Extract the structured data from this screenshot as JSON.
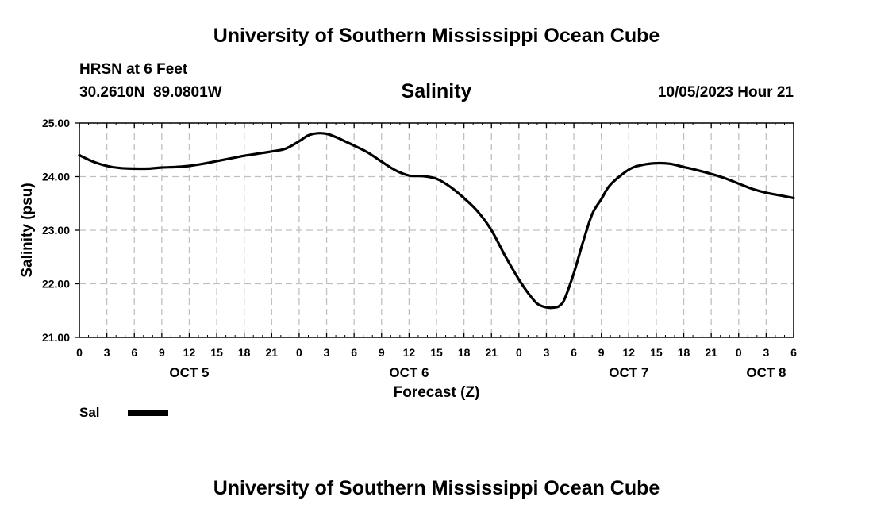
{
  "header": {
    "title": "University of Southern Mississippi Ocean Cube",
    "station": "HRSN at 6 Feet",
    "coords": "30.2610N  89.0801W",
    "chart_title": "Salinity",
    "date": "10/05/2023 Hour 21"
  },
  "footer": {
    "title": "University of Southern Mississippi Ocean Cube"
  },
  "legend": {
    "label": "Sal",
    "color": "#000000"
  },
  "colors": {
    "line": "#000000",
    "grid": "#c0c0c0",
    "background": "#ffffff"
  },
  "chart_data": {
    "type": "line",
    "title": "Salinity",
    "xlabel": "Forecast (Z)",
    "ylabel": "Salinity (psu)",
    "xlim": [
      0,
      78
    ],
    "ylim": [
      21,
      25
    ],
    "y_ticks": [
      21,
      22,
      23,
      24,
      25
    ],
    "y_tick_labels": [
      "21.00",
      "22.00",
      "23.00",
      "24.00",
      "25.00"
    ],
    "x_ticks": [
      0,
      3,
      6,
      9,
      12,
      15,
      18,
      21,
      24,
      27,
      30,
      33,
      36,
      39,
      42,
      45,
      48,
      51,
      54,
      57,
      60,
      63,
      66,
      69,
      72,
      75,
      78
    ],
    "x_tick_labels": [
      "0",
      "3",
      "6",
      "9",
      "12",
      "15",
      "18",
      "21",
      "0",
      "3",
      "6",
      "9",
      "12",
      "15",
      "18",
      "21",
      "0",
      "3",
      "6",
      "9",
      "12",
      "15",
      "18",
      "21",
      "0",
      "3",
      "6"
    ],
    "day_labels": [
      {
        "x": 12,
        "label": "OCT 5"
      },
      {
        "x": 36,
        "label": "OCT 6"
      },
      {
        "x": 60,
        "label": "OCT 7"
      },
      {
        "x": 75,
        "label": "OCT 8"
      }
    ],
    "grid": true,
    "series": [
      {
        "name": "Sal",
        "x": [
          0,
          1.5,
          3,
          4.5,
          6,
          7.5,
          9,
          10.5,
          12,
          13.5,
          15,
          16.5,
          18,
          19.5,
          21,
          22.5,
          24,
          25,
          26,
          27,
          28,
          29,
          30,
          31.5,
          33,
          34.5,
          36,
          37.5,
          39,
          40.5,
          42,
          43.5,
          45,
          46.5,
          48,
          49,
          50,
          51,
          52,
          52.5,
          53,
          54,
          55,
          56,
          57,
          58,
          60,
          61.5,
          63,
          64.5,
          66,
          67.5,
          69,
          70.5,
          72,
          73.5,
          75,
          76.5,
          78
        ],
        "values": [
          24.4,
          24.28,
          24.2,
          24.16,
          24.15,
          24.15,
          24.17,
          24.18,
          24.2,
          24.24,
          24.29,
          24.34,
          24.39,
          24.43,
          24.47,
          24.52,
          24.66,
          24.77,
          24.81,
          24.8,
          24.74,
          24.66,
          24.58,
          24.45,
          24.28,
          24.12,
          24.02,
          24.01,
          23.96,
          23.81,
          23.6,
          23.35,
          23.0,
          22.52,
          22.08,
          21.83,
          21.63,
          21.56,
          21.56,
          21.6,
          21.72,
          22.2,
          22.78,
          23.3,
          23.58,
          23.85,
          24.13,
          24.22,
          24.25,
          24.24,
          24.18,
          24.12,
          24.05,
          23.97,
          23.87,
          23.77,
          23.7,
          23.65,
          23.6
        ]
      }
    ]
  }
}
